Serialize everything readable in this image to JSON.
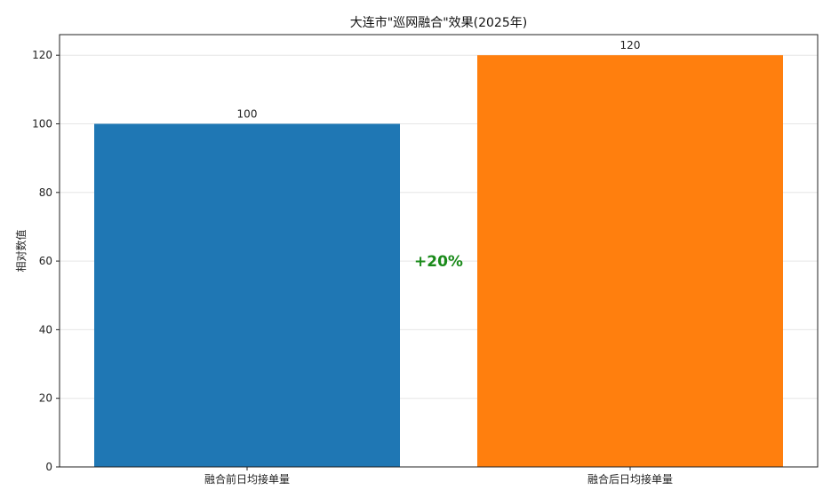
{
  "chart_data": {
    "type": "bar",
    "title": "大连市\"巡网融合\"效果(2025年)",
    "xlabel": "",
    "ylabel": "相对数值",
    "categories": [
      "融合前日均接单量",
      "融合后日均接单量"
    ],
    "values": [
      100,
      120
    ],
    "data_labels": [
      "100",
      "120"
    ],
    "colors": [
      "#1f77b4",
      "#ff7f0e"
    ],
    "ylim": [
      0,
      126
    ],
    "yticks": [
      0,
      20,
      40,
      60,
      80,
      100,
      120
    ],
    "grid": true,
    "annotation": {
      "text": "+20%",
      "color": "#1a8a1a",
      "y": 60
    }
  }
}
